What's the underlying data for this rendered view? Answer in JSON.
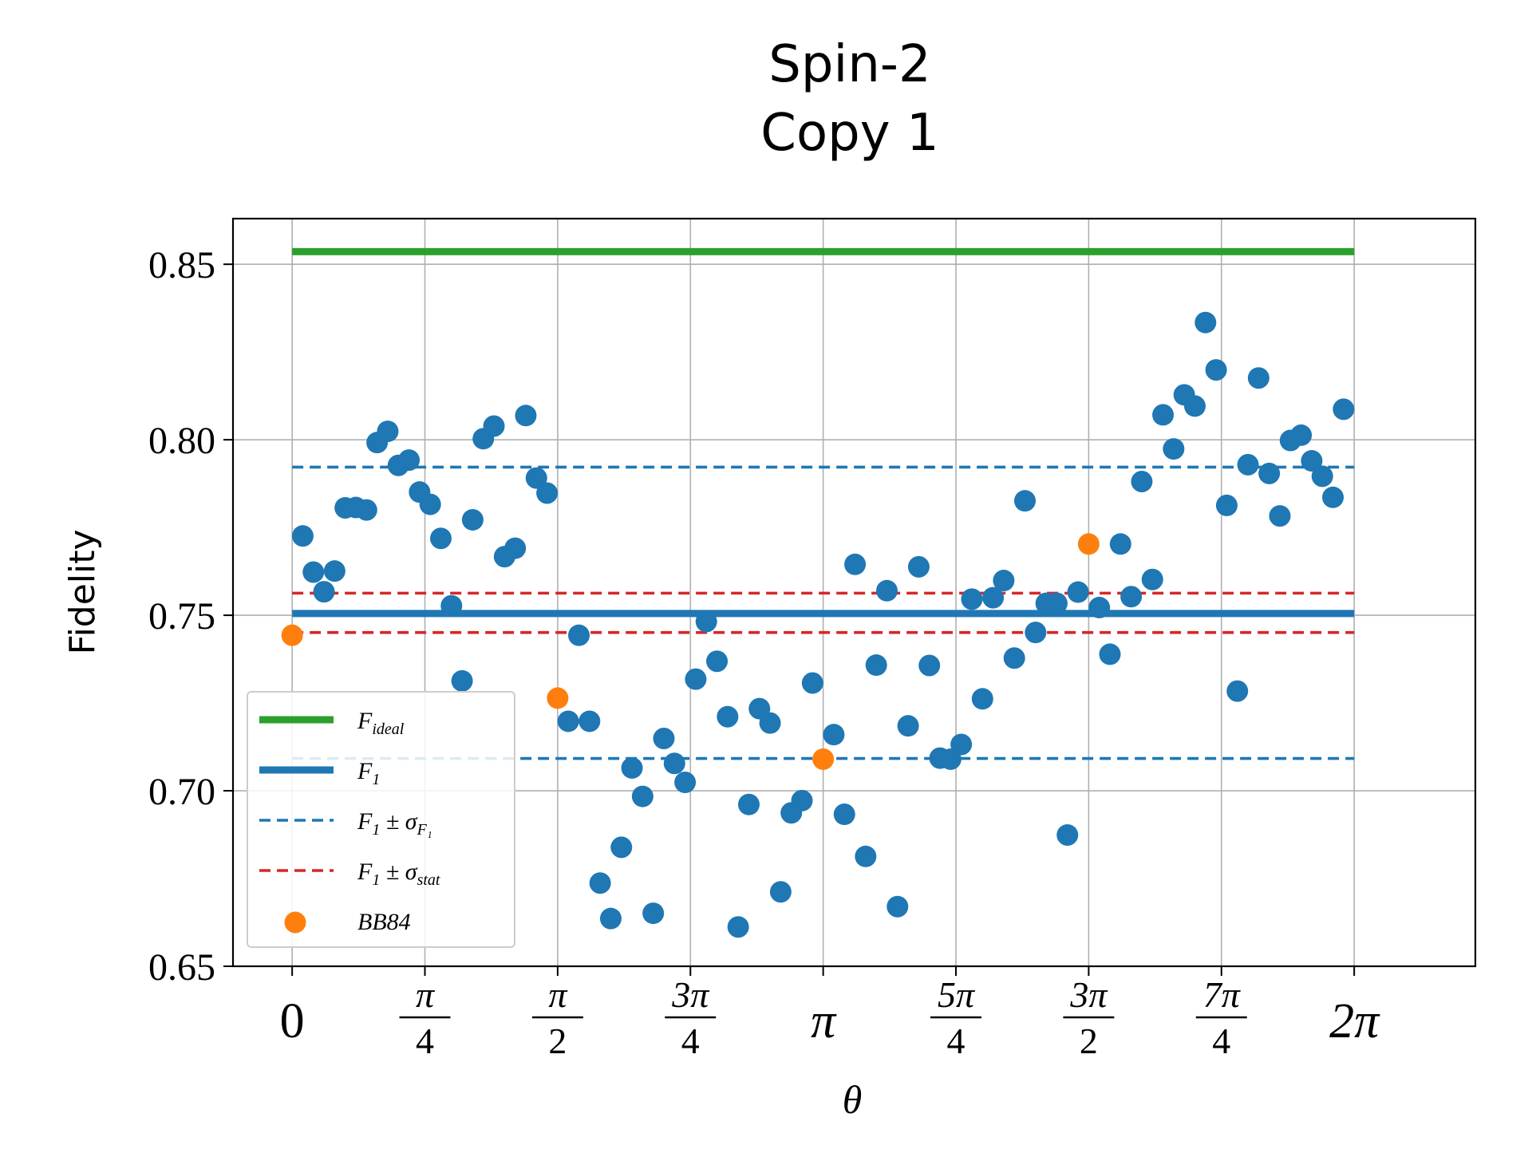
{
  "chart_data": {
    "type": "scatter",
    "title_line1": "Spin-2",
    "title_line2": "Copy 1",
    "xlabel": "θ",
    "ylabel": "Fidelity",
    "xlim": [
      -0.35,
      7.0
    ],
    "ylim": [
      0.65,
      0.863
    ],
    "grid": true,
    "legend_position": "lower-left",
    "y_ticks": [
      0.65,
      0.7,
      0.75,
      0.8,
      0.85
    ],
    "y_tick_labels": [
      "0.65",
      "0.70",
      "0.75",
      "0.80",
      "0.85"
    ],
    "x_ticks": [
      {
        "value": 0,
        "num": "0",
        "den": ""
      },
      {
        "value": 0.7854,
        "num": "π",
        "den": "4"
      },
      {
        "value": 1.5708,
        "num": "π",
        "den": "2"
      },
      {
        "value": 2.3562,
        "num": "3π",
        "den": "4"
      },
      {
        "value": 3.1416,
        "num": "π",
        "den": ""
      },
      {
        "value": 3.927,
        "num": "5π",
        "den": "4"
      },
      {
        "value": 4.7124,
        "num": "3π",
        "den": "2"
      },
      {
        "value": 5.4978,
        "num": "7π",
        "den": "4"
      },
      {
        "value": 6.2832,
        "num": "2π",
        "den": ""
      }
    ],
    "colors": {
      "ideal": "#2ca02c",
      "f1": "#1f77b4",
      "sigma_f1": "#1f77b4",
      "sigma_stat": "#d62728",
      "bb84": "#ff7f0e",
      "points": "#1f77b4"
    },
    "lines": {
      "F_ideal": 0.8536,
      "F1": 0.7505,
      "F1_plus_sigma_F1": 0.7922,
      "F1_minus_sigma_F1": 0.7092,
      "F1_plus_sigma_stat": 0.7563,
      "F1_minus_sigma_stat": 0.7451,
      "x_range": [
        0.0,
        6.2832
      ]
    },
    "legend": [
      {
        "key": "ideal",
        "main": "F",
        "sub": "ideal"
      },
      {
        "key": "f1",
        "main": "F",
        "sub": "1"
      },
      {
        "key": "sigma_f1",
        "main": "F",
        "sub": "1",
        "rest": " ± σ",
        "rest_sub": "F₁"
      },
      {
        "key": "sigma_stat",
        "main": "F",
        "sub": "1",
        "rest": " ± σ",
        "rest_sub": "stat"
      },
      {
        "key": "bb84",
        "main": "BB84",
        "sub": ""
      }
    ],
    "series": [
      {
        "name": "BB84",
        "points": [
          [
            0.0,
            0.7443
          ],
          [
            1.5708,
            0.7264
          ],
          [
            3.1416,
            0.709
          ],
          [
            4.7124,
            0.7703
          ]
        ]
      },
      {
        "points": [
          [
            0.0628,
            0.7726
          ],
          [
            0.1257,
            0.7623
          ],
          [
            0.1885,
            0.7567
          ],
          [
            0.2513,
            0.7626
          ],
          [
            0.3142,
            0.7806
          ],
          [
            0.377,
            0.7807
          ],
          [
            0.4398,
            0.78
          ],
          [
            0.5027,
            0.7992
          ],
          [
            0.5655,
            0.8024
          ],
          [
            0.6283,
            0.7927
          ],
          [
            0.6912,
            0.7942
          ],
          [
            0.754,
            0.7851
          ],
          [
            0.8168,
            0.7816
          ],
          [
            0.8796,
            0.7719
          ],
          [
            0.9425,
            0.7527
          ],
          [
            1.0053,
            0.7313
          ],
          [
            1.0681,
            0.7772
          ],
          [
            1.131,
            0.8003
          ],
          [
            1.1938,
            0.8039
          ],
          [
            1.2566,
            0.7667
          ],
          [
            1.3195,
            0.7691
          ],
          [
            1.3823,
            0.8069
          ],
          [
            1.4451,
            0.7891
          ],
          [
            1.508,
            0.7848
          ],
          [
            1.6336,
            0.7198
          ],
          [
            1.6965,
            0.7443
          ],
          [
            1.7593,
            0.7198
          ],
          [
            1.8221,
            0.6737
          ],
          [
            1.885,
            0.6636
          ],
          [
            1.9478,
            0.6839
          ],
          [
            2.0106,
            0.7065
          ],
          [
            2.0735,
            0.6984
          ],
          [
            2.1363,
            0.6651
          ],
          [
            2.1991,
            0.7149
          ],
          [
            2.2619,
            0.7078
          ],
          [
            2.3248,
            0.7024
          ],
          [
            2.3876,
            0.7318
          ],
          [
            2.4504,
            0.7482
          ],
          [
            2.5133,
            0.7369
          ],
          [
            2.5761,
            0.7211
          ],
          [
            2.6389,
            0.6612
          ],
          [
            2.7018,
            0.6961
          ],
          [
            2.7646,
            0.7234
          ],
          [
            2.8274,
            0.7193
          ],
          [
            2.8903,
            0.6712
          ],
          [
            2.9531,
            0.6937
          ],
          [
            3.0159,
            0.6972
          ],
          [
            3.0788,
            0.7307
          ],
          [
            3.2044,
            0.716
          ],
          [
            3.2673,
            0.6933
          ],
          [
            3.3301,
            0.7645
          ],
          [
            3.3929,
            0.6813
          ],
          [
            3.4558,
            0.7358
          ],
          [
            3.5186,
            0.757
          ],
          [
            3.5814,
            0.667
          ],
          [
            3.6442,
            0.7185
          ],
          [
            3.7071,
            0.7638
          ],
          [
            3.7699,
            0.7357
          ],
          [
            3.8327,
            0.7093
          ],
          [
            3.8956,
            0.709
          ],
          [
            3.9584,
            0.7132
          ],
          [
            4.0212,
            0.7546
          ],
          [
            4.0841,
            0.7262
          ],
          [
            4.1469,
            0.755
          ],
          [
            4.2097,
            0.7599
          ],
          [
            4.2726,
            0.7378
          ],
          [
            4.3354,
            0.7826
          ],
          [
            4.3982,
            0.7451
          ],
          [
            4.4611,
            0.7534
          ],
          [
            4.5239,
            0.7534
          ],
          [
            4.5867,
            0.6874
          ],
          [
            4.6496,
            0.7566
          ],
          [
            4.7752,
            0.7522
          ],
          [
            4.8381,
            0.7389
          ],
          [
            4.9009,
            0.7703
          ],
          [
            4.9637,
            0.7553
          ],
          [
            5.0265,
            0.7881
          ],
          [
            5.0894,
            0.7602
          ],
          [
            5.1522,
            0.8071
          ],
          [
            5.215,
            0.7974
          ],
          [
            5.2779,
            0.8128
          ],
          [
            5.3407,
            0.8096
          ],
          [
            5.4035,
            0.8334
          ],
          [
            5.4664,
            0.8199
          ],
          [
            5.5292,
            0.7813
          ],
          [
            5.592,
            0.7284
          ],
          [
            5.6549,
            0.7929
          ],
          [
            5.7177,
            0.8176
          ],
          [
            5.7805,
            0.7904
          ],
          [
            5.8434,
            0.7783
          ],
          [
            5.9062,
            0.7998
          ],
          [
            5.969,
            0.8013
          ],
          [
            6.0319,
            0.794
          ],
          [
            6.0947,
            0.7896
          ],
          [
            6.1575,
            0.7836
          ],
          [
            6.2204,
            0.8087
          ]
        ]
      }
    ]
  }
}
